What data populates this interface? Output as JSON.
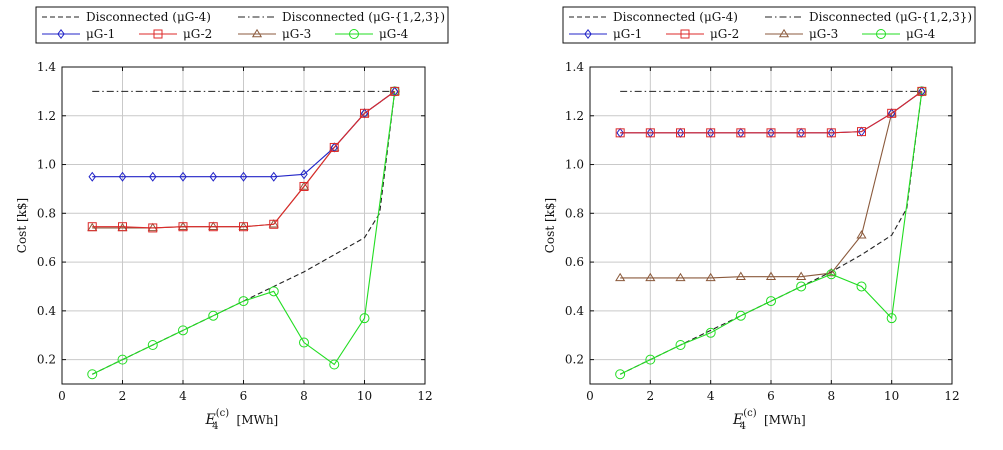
{
  "legend": {
    "entries": [
      {
        "key": "disc4",
        "label": "Disconnected (μG-4)",
        "color": "#222222",
        "dash": "5,3",
        "marker": "none"
      },
      {
        "key": "disc123",
        "label": "Disconnected (μG-{1,2,3})",
        "color": "#222222",
        "dash": "7,3,1.5,3",
        "marker": "none"
      },
      {
        "key": "g1",
        "label": "μG-1",
        "color": "#2326c8",
        "dash": "",
        "marker": "diamond"
      },
      {
        "key": "g2",
        "label": "μG-2",
        "color": "#dd2a2a",
        "dash": "",
        "marker": "square"
      },
      {
        "key": "g3",
        "label": "μG-3",
        "color": "#8b5a3c",
        "dash": "",
        "marker": "triangle"
      },
      {
        "key": "g4",
        "label": "μG-4",
        "color": "#22dd22",
        "dash": "",
        "marker": "circle"
      }
    ]
  },
  "chart_data": [
    {
      "type": "line",
      "xlabel": "E4(c) [MWh]",
      "xlabel_main": "E",
      "xlabel_sub": "4",
      "xlabel_sup": "(c)",
      "xlabel_unit": "[MWh]",
      "ylabel": "Cost [k$]",
      "xlim": [
        0,
        12
      ],
      "ylim": [
        0.1,
        1.4
      ],
      "xticks": [
        0,
        2,
        4,
        6,
        8,
        10,
        12
      ],
      "yticks": [
        0.2,
        0.4,
        0.6,
        0.8,
        1.0,
        1.2,
        1.4
      ],
      "ytick_labels": [
        "0.2",
        "0.4",
        "0.6",
        "0.8",
        "1.0",
        "1.2",
        "1.4"
      ],
      "grid": true,
      "series": [
        {
          "key": "disc123",
          "name": "Disconnected (μG-{1,2,3})",
          "x": [
            1,
            11
          ],
          "y": [
            1.3,
            1.3
          ]
        },
        {
          "key": "disc4",
          "name": "Disconnected (μG-4)",
          "x": [
            1,
            2,
            3,
            4,
            5,
            6,
            7,
            8,
            9,
            10,
            10.5,
            11
          ],
          "y": [
            0.14,
            0.2,
            0.26,
            0.32,
            0.38,
            0.44,
            0.5,
            0.56,
            0.63,
            0.7,
            0.8,
            1.3
          ]
        },
        {
          "key": "g3",
          "name": "μG-3",
          "x": [
            1,
            2,
            3,
            4,
            5,
            6,
            7,
            8,
            9,
            10,
            11
          ],
          "y": [
            0.74,
            0.74,
            0.74,
            0.745,
            0.745,
            0.745,
            0.755,
            0.91,
            1.07,
            1.21,
            1.3
          ]
        },
        {
          "key": "g4",
          "name": "μG-4",
          "x": [
            1,
            2,
            3,
            4,
            5,
            6,
            7,
            8,
            9,
            10,
            11
          ],
          "y": [
            0.14,
            0.2,
            0.26,
            0.32,
            0.38,
            0.44,
            0.48,
            0.27,
            0.18,
            0.37,
            1.3
          ]
        },
        {
          "key": "g1",
          "name": "μG-1",
          "x": [
            1,
            2,
            3,
            4,
            5,
            6,
            7,
            8,
            9,
            10,
            11
          ],
          "y": [
            0.95,
            0.95,
            0.95,
            0.95,
            0.95,
            0.95,
            0.95,
            0.96,
            1.07,
            1.21,
            1.3
          ]
        },
        {
          "key": "g2",
          "name": "μG-2",
          "x": [
            1,
            2,
            3,
            4,
            5,
            6,
            7,
            8,
            9,
            10,
            11
          ],
          "y": [
            0.745,
            0.745,
            0.74,
            0.745,
            0.745,
            0.745,
            0.755,
            0.91,
            1.07,
            1.21,
            1.3
          ]
        }
      ]
    },
    {
      "type": "line",
      "xlabel": "E4(c) [MWh]",
      "xlabel_main": "E",
      "xlabel_sub": "4",
      "xlabel_sup": "(c)",
      "xlabel_unit": "[MWh]",
      "ylabel": "Cost [k$]",
      "xlim": [
        0,
        12
      ],
      "ylim": [
        0.1,
        1.4
      ],
      "xticks": [
        0,
        2,
        4,
        6,
        8,
        10,
        12
      ],
      "yticks": [
        0.2,
        0.4,
        0.6,
        0.8,
        1.0,
        1.2,
        1.4
      ],
      "ytick_labels": [
        "0.2",
        "0.4",
        "0.6",
        "0.8",
        "1.0",
        "1.2",
        "1.4"
      ],
      "grid": true,
      "series": [
        {
          "key": "disc123",
          "name": "Disconnected (μG-{1,2,3})",
          "x": [
            1,
            11
          ],
          "y": [
            1.3,
            1.3
          ]
        },
        {
          "key": "disc4",
          "name": "Disconnected (μG-4)",
          "x": [
            1,
            2,
            3,
            4,
            5,
            6,
            7,
            8,
            9,
            10,
            10.5,
            11
          ],
          "y": [
            0.14,
            0.2,
            0.26,
            0.32,
            0.38,
            0.44,
            0.5,
            0.56,
            0.63,
            0.71,
            0.82,
            1.3
          ]
        },
        {
          "key": "g3",
          "name": "μG-3",
          "x": [
            1,
            2,
            3,
            4,
            5,
            6,
            7,
            8,
            9,
            10,
            11
          ],
          "y": [
            0.535,
            0.535,
            0.535,
            0.535,
            0.54,
            0.54,
            0.54,
            0.555,
            0.71,
            1.21,
            1.3
          ]
        },
        {
          "key": "g4",
          "name": "μG-4",
          "x": [
            1,
            2,
            3,
            4,
            5,
            6,
            7,
            8,
            9,
            10,
            11
          ],
          "y": [
            0.14,
            0.2,
            0.26,
            0.31,
            0.38,
            0.44,
            0.5,
            0.55,
            0.5,
            0.37,
            1.3
          ]
        },
        {
          "key": "g1",
          "name": "μG-1",
          "x": [
            1,
            2,
            3,
            4,
            5,
            6,
            7,
            8,
            9,
            10,
            11
          ],
          "y": [
            1.13,
            1.13,
            1.13,
            1.13,
            1.13,
            1.13,
            1.13,
            1.13,
            1.135,
            1.21,
            1.3
          ]
        },
        {
          "key": "g2",
          "name": "μG-2",
          "x": [
            1,
            2,
            3,
            4,
            5,
            6,
            7,
            8,
            9,
            10,
            11
          ],
          "y": [
            1.13,
            1.13,
            1.13,
            1.13,
            1.13,
            1.13,
            1.13,
            1.13,
            1.135,
            1.21,
            1.3
          ]
        }
      ]
    }
  ]
}
